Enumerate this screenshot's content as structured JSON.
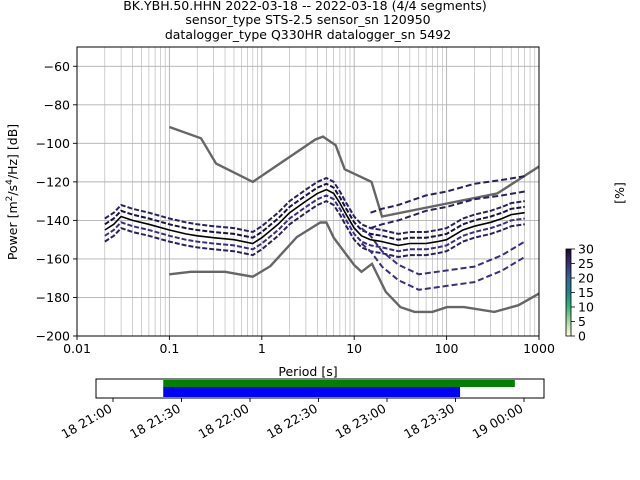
{
  "header": {
    "line1": "BK.YBH.50.HHN   2022-03-18 -- 2022-03-18  (4/4 segments)",
    "line2": "sensor_type STS-2.5 sensor_sn 120950",
    "line3": "datalogger_type Q330HR datalogger_sn 5492"
  },
  "chart_data": [
    {
      "type": "line",
      "xlabel": "Period [s]",
      "ylabel_main": "Power [m",
      "ylabel_sup1": "2",
      "ylabel_mid": "/s",
      "ylabel_sup2": "4",
      "ylabel_end": "/Hz] [dB]",
      "xscale": "log",
      "xlim": [
        0.01,
        1000
      ],
      "ylim": [
        -200,
        -50
      ],
      "grid": true,
      "xticks": [
        {
          "v": 0.01,
          "label": "0.01"
        },
        {
          "v": 0.1,
          "label": "0.1"
        },
        {
          "v": 1,
          "label": "1"
        },
        {
          "v": 10,
          "label": "10"
        },
        {
          "v": 100,
          "label": "100"
        },
        {
          "v": 1000,
          "label": "1000"
        }
      ],
      "yticks": [
        {
          "v": -60,
          "label": "−60"
        },
        {
          "v": -80,
          "label": "−80"
        },
        {
          "v": -100,
          "label": "−100"
        },
        {
          "v": -120,
          "label": "−120"
        },
        {
          "v": -140,
          "label": "−140"
        },
        {
          "v": -160,
          "label": "−160"
        },
        {
          "v": -180,
          "label": "−180"
        },
        {
          "v": -200,
          "label": "−200"
        }
      ],
      "noise_models": {
        "color": "#666666",
        "high": {
          "x": [
            0.1,
            0.22,
            0.32,
            0.8,
            3.8,
            4.6,
            6.3,
            7.9,
            15.4,
            20,
            354.8,
            1000
          ],
          "y": [
            -91.5,
            -97.4,
            -110.5,
            -120,
            -98,
            -96.5,
            -101,
            -113.5,
            -120,
            -138,
            -126,
            -112
          ]
        },
        "low": {
          "x": [
            0.1,
            0.17,
            0.4,
            0.8,
            1.24,
            2.4,
            4.3,
            5,
            6,
            10,
            12,
            15.6,
            21.9,
            31.6,
            45,
            70,
            101,
            154,
            328,
            600,
            1000
          ],
          "y": [
            -168,
            -166.7,
            -166.7,
            -169.2,
            -163.7,
            -148.6,
            -141.1,
            -141.1,
            -149,
            -163.2,
            -166.7,
            -162.5,
            -177,
            -185,
            -187.5,
            -187.5,
            -185,
            -185,
            -187.5,
            -184,
            -178
          ]
        }
      },
      "mode_series": {
        "color": "#000000",
        "x": [
          0.02,
          0.025,
          0.03,
          0.04,
          0.06,
          0.1,
          0.15,
          0.2,
          0.3,
          0.5,
          0.8,
          1,
          1.5,
          2,
          3,
          4,
          5,
          6,
          7,
          8,
          10,
          12,
          15,
          20,
          30,
          40,
          60,
          80,
          100,
          150,
          200,
          300,
          400,
          500,
          700
        ],
        "y": [
          -145,
          -142,
          -138,
          -140,
          -142,
          -145,
          -147,
          -148,
          -149,
          -150,
          -152,
          -149,
          -142,
          -136,
          -130,
          -126,
          -124,
          -126,
          -131,
          -136,
          -144,
          -148,
          -150,
          -151,
          -153,
          -152,
          -152,
          -151,
          -150,
          -145,
          -143,
          -141,
          -139,
          -137,
          -136
        ]
      },
      "pdf_bands": {
        "colors": [
          "#2a1f5f",
          "#3a2e80",
          "#1a0f40"
        ],
        "offsets": [
          -6,
          -3,
          3,
          6
        ]
      },
      "upper_branch": {
        "x": [
          15,
          20,
          30,
          60,
          100,
          200,
          400,
          700
        ],
        "y": [
          -140,
          -138,
          -136,
          -131,
          -129,
          -125,
          -123,
          -121
        ]
      },
      "lower_branch": {
        "x": [
          12,
          15,
          20,
          30,
          50,
          100,
          200,
          400,
          700
        ],
        "y": [
          -148,
          -152,
          -160,
          -167,
          -172,
          -170,
          -168,
          -162,
          -155
        ]
      },
      "colorbar": {
        "label": "[%]",
        "min": 0,
        "max": 30,
        "ticks": [
          {
            "v": 0,
            "label": "0"
          },
          {
            "v": 5,
            "label": "5"
          },
          {
            "v": 10,
            "label": "10"
          },
          {
            "v": 15,
            "label": "15"
          },
          {
            "v": 20,
            "label": "20"
          },
          {
            "v": 25,
            "label": "25"
          },
          {
            "v": 30,
            "label": "30"
          }
        ],
        "gradient": [
          "#ffffe0",
          "#a8d8a0",
          "#35b779",
          "#26828e",
          "#31688e",
          "#3b2f6f",
          "#1a0a2e"
        ]
      }
    },
    {
      "type": "timeline",
      "xlim": [
        "21:00",
        "24:00"
      ],
      "ticks": [
        {
          "min": 0,
          "label": "18 21:00"
        },
        {
          "min": 30,
          "label": "18 21:30"
        },
        {
          "min": 60,
          "label": "18 22:00"
        },
        {
          "min": 90,
          "label": "18 22:30"
        },
        {
          "min": 120,
          "label": "18 23:00"
        },
        {
          "min": 150,
          "label": "18 23:30"
        },
        {
          "min": 180,
          "label": "19 00:00"
        }
      ],
      "bars": [
        {
          "start_min": 22,
          "end_min": 176,
          "color": "#008000"
        },
        {
          "start_min": 22,
          "end_min": 152,
          "color": "#0000ff"
        }
      ]
    }
  ]
}
